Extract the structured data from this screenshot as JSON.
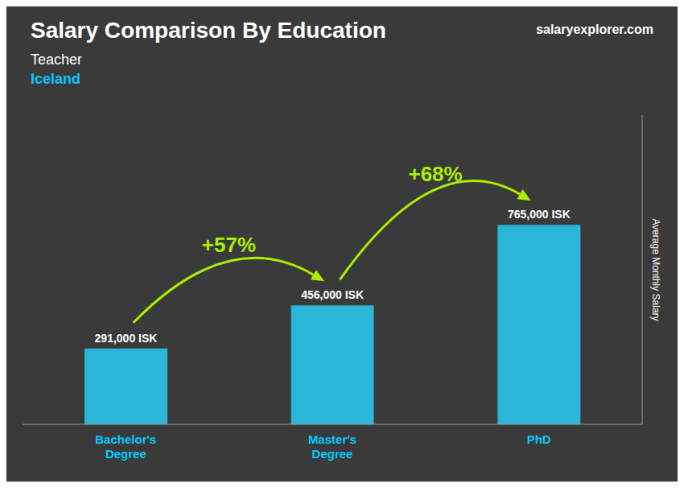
{
  "chart_data": {
    "type": "bar",
    "title": "Salary Comparison By Education",
    "subtitle": [
      "Teacher",
      "Iceland"
    ],
    "ylabel": "Average Monthly Salary",
    "annotations": [
      "+57%",
      "+68%",
      "salaryexplorer.com"
    ],
    "categories": [
      "Bachelor's\nDegree",
      "Master's\nDegree",
      "PhD"
    ],
    "values": [
      291000,
      456000,
      765000
    ],
    "value_labels": [
      "291,000 ISK",
      "456,000 ISK",
      "765,000 ISK"
    ],
    "data_labels": true,
    "color": "#29b6d8",
    "ylim": [
      0,
      1185750
    ],
    "grid": false,
    "tick_labels": "x"
  }
}
